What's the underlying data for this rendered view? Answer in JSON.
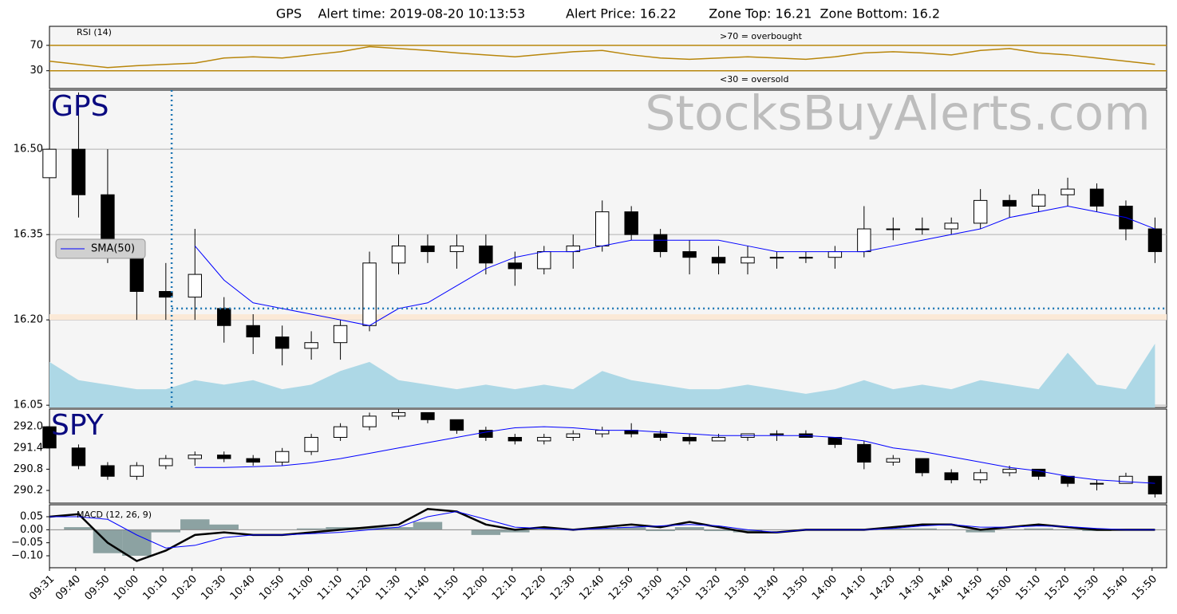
{
  "title": "GPS    Alert time: 2019-08-20 10:13:53          Alert Price: 16.22        Zone Top: 16.21  Zone Bottom: 16.2",
  "chart_data": [
    {
      "type": "line",
      "label": "RSI (14)",
      "annotations": [
        ">70 = overbought",
        "<30 = oversold"
      ],
      "x": [
        0,
        10,
        20,
        30,
        40,
        50,
        60,
        70,
        80,
        90,
        100,
        110,
        120,
        130,
        140,
        150,
        160,
        170,
        180,
        190,
        200,
        210,
        220,
        230,
        240,
        250,
        260,
        270,
        280,
        290,
        300,
        310,
        320,
        330,
        340,
        350,
        360,
        370,
        380
      ],
      "series": [
        {
          "color": "#b8860b",
          "values": [
            45,
            40,
            35,
            38,
            40,
            42,
            50,
            52,
            50,
            55,
            60,
            68,
            65,
            62,
            58,
            55,
            52,
            56,
            60,
            62,
            55,
            50,
            48,
            50,
            52,
            50,
            48,
            52,
            58,
            60,
            58,
            55,
            62,
            65,
            58,
            55,
            50,
            45,
            40
          ]
        }
      ],
      "level_color": "#b8860b",
      "ylim": [
        2,
        100
      ],
      "yticks": [
        30,
        70
      ]
    },
    {
      "type": "candlestick",
      "label": "GPS",
      "watermark": "StocksBuyAlerts.com",
      "x": [
        0,
        10,
        20,
        30,
        40,
        50,
        60,
        70,
        80,
        90,
        100,
        110,
        120,
        130,
        140,
        150,
        160,
        170,
        180,
        190,
        200,
        210,
        220,
        230,
        240,
        250,
        260,
        270,
        280,
        290,
        300,
        310,
        320,
        330,
        340,
        350,
        360,
        370,
        380
      ],
      "open": [
        16.45,
        16.5,
        16.42,
        16.32,
        16.25,
        16.24,
        16.22,
        16.19,
        16.17,
        16.15,
        16.16,
        16.19,
        16.3,
        16.33,
        16.32,
        16.33,
        16.3,
        16.29,
        16.32,
        16.33,
        16.39,
        16.35,
        16.32,
        16.31,
        16.3,
        16.31,
        16.31,
        16.31,
        16.32,
        16.36,
        16.36,
        16.36,
        16.37,
        16.41,
        16.4,
        16.42,
        16.43,
        16.4,
        16.36
      ],
      "high": [
        16.58,
        16.6,
        16.5,
        16.34,
        16.3,
        16.36,
        16.24,
        16.21,
        16.19,
        16.18,
        16.2,
        16.32,
        16.35,
        16.35,
        16.35,
        16.35,
        16.32,
        16.33,
        16.35,
        16.41,
        16.4,
        16.36,
        16.34,
        16.33,
        16.33,
        16.32,
        16.32,
        16.33,
        16.4,
        16.38,
        16.38,
        16.38,
        16.43,
        16.42,
        16.43,
        16.45,
        16.44,
        16.41,
        16.38
      ],
      "low": [
        16.3,
        16.38,
        16.3,
        16.2,
        16.2,
        16.2,
        16.16,
        16.14,
        16.12,
        16.13,
        16.13,
        16.18,
        16.28,
        16.3,
        16.29,
        16.28,
        16.26,
        16.28,
        16.29,
        16.32,
        16.34,
        16.31,
        16.28,
        16.28,
        16.28,
        16.29,
        16.3,
        16.29,
        16.31,
        16.34,
        16.35,
        16.35,
        16.36,
        16.38,
        16.39,
        16.4,
        16.39,
        16.34,
        16.3
      ],
      "close": [
        16.5,
        16.42,
        16.32,
        16.25,
        16.24,
        16.28,
        16.19,
        16.17,
        16.15,
        16.16,
        16.19,
        16.3,
        16.33,
        16.32,
        16.33,
        16.3,
        16.29,
        16.32,
        16.33,
        16.39,
        16.35,
        16.32,
        16.31,
        16.3,
        16.31,
        16.31,
        16.31,
        16.32,
        16.36,
        16.36,
        16.36,
        16.37,
        16.41,
        16.4,
        16.42,
        16.43,
        16.4,
        16.36,
        16.32
      ],
      "up_color": "#ffffff",
      "down_color": "#000000",
      "series": [
        {
          "name": "SMA(50)",
          "color": "#0000ff",
          "values": [
            null,
            null,
            null,
            null,
            null,
            16.33,
            16.27,
            16.23,
            16.22,
            16.21,
            16.2,
            16.19,
            16.22,
            16.23,
            16.26,
            16.29,
            16.31,
            16.32,
            16.32,
            16.33,
            16.34,
            16.34,
            16.34,
            16.34,
            16.33,
            16.32,
            16.32,
            16.32,
            16.32,
            16.33,
            16.34,
            16.35,
            16.36,
            16.38,
            16.39,
            16.4,
            16.39,
            16.38,
            16.36
          ]
        }
      ],
      "volume": {
        "color": "#add8e6",
        "values": [
          10,
          6,
          5,
          4,
          4,
          6,
          5,
          6,
          4,
          5,
          8,
          10,
          6,
          5,
          4,
          5,
          4,
          5,
          4,
          8,
          6,
          5,
          4,
          4,
          5,
          4,
          3,
          4,
          6,
          4,
          5,
          4,
          6,
          5,
          4,
          12,
          5,
          4,
          14
        ]
      },
      "alert": {
        "time": 42,
        "price": 16.22,
        "zone_top": 16.21,
        "zone_bottom": 16.2,
        "color": "#1f77b4",
        "zone_color": "#fbe9d7"
      },
      "ylim": [
        16.046,
        16.604
      ],
      "yticks": [
        {
          "value": 16.5,
          "label": "16.50"
        },
        16.35,
        {
          "value": 16.2,
          "label": "16.20"
        },
        16.05
      ],
      "grid": true,
      "legend": "upper left"
    },
    {
      "type": "candlestick",
      "label": "SPY",
      "x": [
        0,
        10,
        20,
        30,
        40,
        50,
        60,
        70,
        80,
        90,
        100,
        110,
        120,
        130,
        140,
        150,
        160,
        170,
        180,
        190,
        200,
        210,
        220,
        230,
        240,
        250,
        260,
        270,
        280,
        290,
        300,
        310,
        320,
        330,
        340,
        350,
        360,
        370,
        380
      ],
      "open": [
        292.0,
        291.4,
        290.9,
        290.6,
        290.9,
        291.1,
        291.2,
        291.1,
        291.0,
        291.3,
        291.7,
        292.0,
        292.3,
        292.4,
        292.2,
        291.9,
        291.7,
        291.6,
        291.7,
        291.8,
        291.9,
        291.8,
        291.7,
        291.6,
        291.7,
        291.8,
        291.8,
        291.7,
        291.5,
        291.0,
        291.1,
        290.7,
        290.5,
        290.7,
        290.8,
        290.6,
        290.4,
        290.4,
        290.6
      ],
      "high": [
        292.1,
        291.5,
        291.0,
        291.0,
        291.2,
        291.3,
        291.3,
        291.2,
        291.4,
        291.8,
        292.1,
        292.4,
        292.5,
        292.4,
        292.2,
        292.0,
        291.8,
        291.8,
        291.9,
        292.0,
        292.1,
        291.9,
        291.8,
        291.8,
        291.8,
        291.9,
        291.9,
        291.7,
        291.6,
        291.2,
        291.1,
        290.8,
        290.8,
        290.9,
        290.8,
        290.6,
        290.5,
        290.7,
        290.6
      ],
      "low": [
        291.3,
        290.8,
        290.5,
        290.5,
        290.8,
        290.9,
        291.0,
        290.9,
        290.9,
        291.2,
        291.6,
        291.9,
        292.2,
        292.1,
        291.8,
        291.6,
        291.5,
        291.5,
        291.6,
        291.7,
        291.7,
        291.6,
        291.5,
        291.6,
        291.6,
        291.6,
        291.7,
        291.4,
        290.8,
        290.9,
        290.6,
        290.4,
        290.4,
        290.6,
        290.5,
        290.3,
        290.2,
        290.4,
        290.0
      ],
      "close": [
        291.4,
        290.9,
        290.6,
        290.9,
        291.1,
        291.2,
        291.1,
        291.0,
        291.3,
        291.7,
        292.0,
        292.3,
        292.4,
        292.2,
        291.9,
        291.7,
        291.6,
        291.7,
        291.8,
        291.9,
        291.8,
        291.7,
        291.6,
        291.7,
        291.8,
        291.8,
        291.7,
        291.5,
        291.0,
        291.1,
        290.7,
        290.5,
        290.7,
        290.8,
        290.6,
        290.4,
        290.4,
        290.6,
        290.1
      ],
      "up_color": "#ffffff",
      "down_color": "#000000",
      "series": [
        {
          "color": "#0000ff",
          "values": [
            null,
            null,
            null,
            null,
            null,
            290.85,
            290.85,
            290.87,
            290.9,
            290.98,
            291.1,
            291.25,
            291.4,
            291.55,
            291.7,
            291.85,
            291.97,
            292.0,
            291.97,
            291.9,
            291.9,
            291.85,
            291.8,
            291.75,
            291.75,
            291.75,
            291.75,
            291.7,
            291.6,
            291.4,
            291.3,
            291.15,
            291.0,
            290.85,
            290.75,
            290.6,
            290.5,
            290.45,
            290.4
          ]
        }
      ],
      "ylim": [
        289.84,
        292.5
      ],
      "yticks": [
        {
          "value": 292.0,
          "label": "292.0"
        },
        291.4,
        290.8,
        290.2
      ]
    },
    {
      "type": "macd",
      "label": "MACD (12, 26, 9)",
      "x": [
        0,
        10,
        20,
        30,
        40,
        50,
        60,
        70,
        80,
        90,
        100,
        110,
        120,
        130,
        140,
        150,
        160,
        170,
        180,
        190,
        200,
        210,
        220,
        230,
        240,
        250,
        260,
        270,
        280,
        290,
        300,
        310,
        320,
        330,
        340,
        350,
        360,
        370,
        380
      ],
      "series": [
        {
          "color": "#000000",
          "values": [
            0.05,
            0.06,
            -0.05,
            -0.12,
            -0.08,
            -0.02,
            -0.01,
            -0.02,
            -0.02,
            -0.01,
            0.0,
            0.01,
            0.02,
            0.08,
            0.07,
            0.02,
            0.0,
            0.01,
            0.0,
            0.01,
            0.02,
            0.01,
            0.03,
            0.01,
            -0.01,
            -0.01,
            0.0,
            0.0,
            0.0,
            0.01,
            0.02,
            0.02,
            0.0,
            0.01,
            0.02,
            0.01,
            0.0,
            0.0,
            0.0
          ]
        },
        {
          "color": "#0000ff",
          "values": [
            0.05,
            0.05,
            0.04,
            -0.02,
            -0.07,
            -0.06,
            -0.03,
            -0.02,
            -0.02,
            -0.015,
            -0.01,
            0.0,
            0.01,
            0.05,
            0.07,
            0.04,
            0.01,
            0.005,
            0.0,
            0.005,
            0.01,
            0.015,
            0.02,
            0.015,
            0.0,
            -0.01,
            0.0,
            0.0,
            0.0,
            0.005,
            0.015,
            0.02,
            0.01,
            0.01,
            0.015,
            0.012,
            0.005,
            0.0,
            0.0
          ]
        }
      ],
      "histogram": {
        "color": "#5f7f7f",
        "values": [
          0,
          0.01,
          -0.09,
          -0.1,
          -0.01,
          0.04,
          0.02,
          0,
          0,
          0.005,
          0.01,
          0.01,
          0.01,
          0.03,
          0,
          -0.02,
          -0.01,
          0.005,
          0,
          0.005,
          0.01,
          -0.005,
          0.01,
          -0.005,
          -0.01,
          0,
          0,
          0,
          0,
          0.005,
          0.005,
          0,
          -0.01,
          0,
          0.005,
          -0.002,
          -0.005,
          0,
          0
        ]
      },
      "ylim": [
        -0.146,
        0.096
      ],
      "yticks": [
        0.05,
        {
          "value": 0,
          "label": "0.00"
        },
        {
          "value": -0.05,
          "label": "−0.05"
        },
        {
          "value": -0.1,
          "label": "−0.10"
        }
      ],
      "xlim": [
        0,
        384
      ],
      "xticks": [
        {
          "value": 0,
          "label": "09:31"
        },
        {
          "value": 9,
          "label": "09:40"
        },
        {
          "value": 19,
          "label": "09:50"
        },
        {
          "value": 29,
          "label": "10:00"
        },
        {
          "value": 39,
          "label": "10:10"
        },
        {
          "value": 49,
          "label": "10:20"
        },
        {
          "value": 59,
          "label": "10:30"
        },
        {
          "value": 69,
          "label": "10:40"
        },
        {
          "value": 79,
          "label": "10:50"
        },
        {
          "value": 89,
          "label": "11:00"
        },
        {
          "value": 99,
          "label": "11:10"
        },
        {
          "value": 109,
          "label": "11:20"
        },
        {
          "value": 119,
          "label": "11:30"
        },
        {
          "value": 129,
          "label": "11:40"
        },
        {
          "value": 139,
          "label": "11:50"
        },
        {
          "value": 149,
          "label": "12:00"
        },
        {
          "value": 159,
          "label": "12:10"
        },
        {
          "value": 169,
          "label": "12:20"
        },
        {
          "value": 179,
          "label": "12:30"
        },
        {
          "value": 189,
          "label": "12:40"
        },
        {
          "value": 199,
          "label": "12:50"
        },
        {
          "value": 209,
          "label": "13:00"
        },
        {
          "value": 219,
          "label": "13:10"
        },
        {
          "value": 229,
          "label": "13:20"
        },
        {
          "value": 239,
          "label": "13:30"
        },
        {
          "value": 249,
          "label": "13:40"
        },
        {
          "value": 259,
          "label": "13:50"
        },
        {
          "value": 269,
          "label": "14:00"
        },
        {
          "value": 279,
          "label": "14:10"
        },
        {
          "value": 289,
          "label": "14:20"
        },
        {
          "value": 299,
          "label": "14:30"
        },
        {
          "value": 309,
          "label": "14:40"
        },
        {
          "value": 319,
          "label": "14:50"
        },
        {
          "value": 329,
          "label": "15:00"
        },
        {
          "value": 339,
          "label": "15:10"
        },
        {
          "value": 349,
          "label": "15:20"
        },
        {
          "value": 359,
          "label": "15:30"
        },
        {
          "value": 369,
          "label": "15:40"
        },
        {
          "value": 379,
          "label": "15:50"
        }
      ]
    }
  ]
}
